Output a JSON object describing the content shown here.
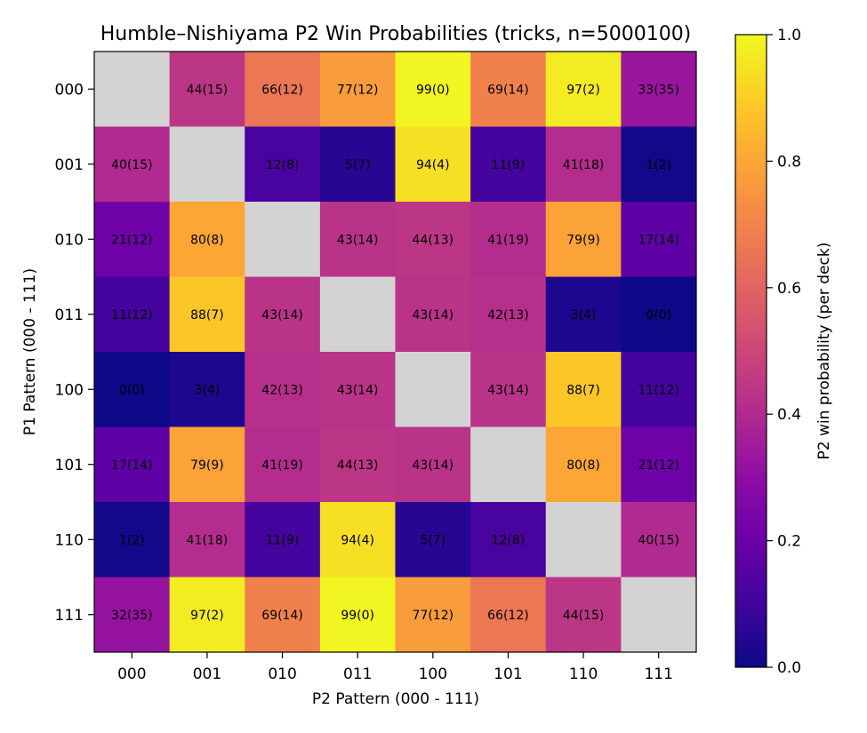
{
  "chart_data": {
    "type": "heatmap",
    "title": "Humble–Nishiyama P2 Win Probabilities (tricks, n=5000100)",
    "xlabel": "P2 Pattern (000 - 111)",
    "ylabel": "P1 Pattern (000 - 111)",
    "x_categories": [
      "000",
      "001",
      "010",
      "011",
      "100",
      "101",
      "110",
      "111"
    ],
    "y_categories": [
      "000",
      "001",
      "010",
      "011",
      "100",
      "101",
      "110",
      "111"
    ],
    "colormap": "plasma",
    "diagonal_color": "#d3d3d3",
    "colorbar": {
      "label": "P2 win probability (per deck)",
      "range": [
        0.0,
        1.0
      ],
      "ticks": [
        "0.0",
        "0.2",
        "0.4",
        "0.6",
        "0.8",
        "1.0"
      ]
    },
    "values": [
      [
        null,
        0.44,
        0.66,
        0.77,
        0.99,
        0.69,
        0.97,
        0.33
      ],
      [
        0.4,
        null,
        0.12,
        0.05,
        0.94,
        0.11,
        0.41,
        0.01
      ],
      [
        0.21,
        0.8,
        null,
        0.43,
        0.44,
        0.41,
        0.79,
        0.17
      ],
      [
        0.11,
        0.88,
        0.43,
        null,
        0.43,
        0.42,
        0.03,
        0.0
      ],
      [
        0.0,
        0.03,
        0.42,
        0.43,
        null,
        0.43,
        0.88,
        0.11
      ],
      [
        0.17,
        0.79,
        0.41,
        0.44,
        0.43,
        null,
        0.8,
        0.21
      ],
      [
        0.01,
        0.41,
        0.11,
        0.94,
        0.05,
        0.12,
        null,
        0.4
      ],
      [
        0.32,
        0.97,
        0.69,
        0.99,
        0.77,
        0.66,
        0.44,
        null
      ]
    ],
    "labels": [
      [
        "",
        "44(15)",
        "66(12)",
        "77(12)",
        "99(0)",
        "69(14)",
        "97(2)",
        "33(35)"
      ],
      [
        "40(15)",
        "",
        "12(8)",
        "5(7)",
        "94(4)",
        "11(9)",
        "41(18)",
        "1(2)"
      ],
      [
        "21(12)",
        "80(8)",
        "",
        "43(14)",
        "44(13)",
        "41(19)",
        "79(9)",
        "17(14)"
      ],
      [
        "11(12)",
        "88(7)",
        "43(14)",
        "",
        "43(14)",
        "42(13)",
        "3(4)",
        "0(0)"
      ],
      [
        "0(0)",
        "3(4)",
        "42(13)",
        "43(14)",
        "",
        "43(14)",
        "88(7)",
        "11(12)"
      ],
      [
        "17(14)",
        "79(9)",
        "41(19)",
        "44(13)",
        "43(14)",
        "",
        "80(8)",
        "21(12)"
      ],
      [
        "1(2)",
        "41(18)",
        "11(9)",
        "94(4)",
        "5(7)",
        "12(8)",
        "",
        "40(15)"
      ],
      [
        "32(35)",
        "97(2)",
        "69(14)",
        "99(0)",
        "77(12)",
        "66(12)",
        "44(15)",
        ""
      ]
    ]
  }
}
